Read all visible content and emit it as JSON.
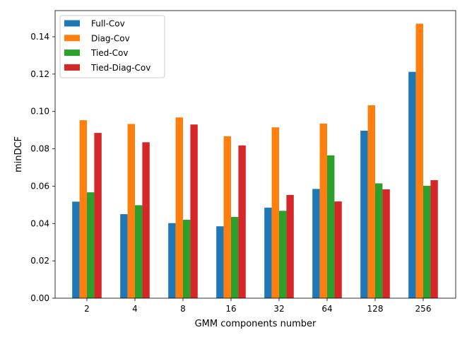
{
  "chart_data": {
    "type": "bar",
    "title": "",
    "xlabel": "GMM components number",
    "ylabel": "minDCF",
    "categories": [
      "2",
      "4",
      "8",
      "16",
      "32",
      "64",
      "128",
      "256"
    ],
    "ylim": [
      0,
      0.154
    ],
    "yticks": [
      0.0,
      0.02,
      0.04,
      0.06,
      0.08,
      0.1,
      0.12,
      0.14
    ],
    "ytick_labels": [
      "0.00",
      "0.02",
      "0.04",
      "0.06",
      "0.08",
      "0.10",
      "0.12",
      "0.14"
    ],
    "grid": false,
    "legend_position": "top-left",
    "series": [
      {
        "name": "Full-Cov",
        "color": "#1f77b4",
        "values": [
          0.0517,
          0.045,
          0.0402,
          0.0385,
          0.0485,
          0.0585,
          0.0897,
          0.1212
        ]
      },
      {
        "name": "Diag-Cov",
        "color": "#ff7f0e",
        "values": [
          0.0953,
          0.0933,
          0.0968,
          0.0867,
          0.0915,
          0.0935,
          0.1033,
          0.147
        ]
      },
      {
        "name": "Tied-Cov",
        "color": "#2ca02c",
        "values": [
          0.0567,
          0.0498,
          0.042,
          0.0435,
          0.0468,
          0.0765,
          0.0615,
          0.0602
        ]
      },
      {
        "name": "Tied-Diag-Cov",
        "color": "#d62728",
        "values": [
          0.0885,
          0.0835,
          0.093,
          0.0818,
          0.0553,
          0.0518,
          0.0583,
          0.0632
        ]
      }
    ]
  }
}
